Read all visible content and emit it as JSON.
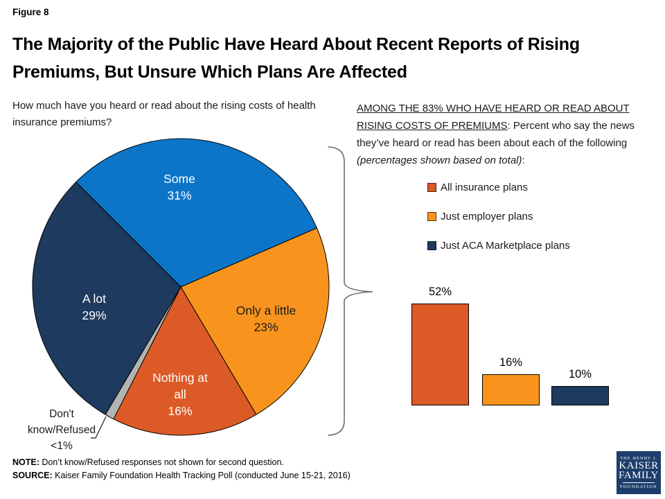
{
  "figure_label": "Figure 8",
  "title": "The Majority of the Public Have Heard About Recent Reports of Rising Premiums, But Unsure Which Plans Are Affected",
  "question_left": "How much have you heard or read about the rising costs of health insurance premiums?",
  "right_intro": {
    "underlined": "AMONG THE 83% WHO HAVE HEARD OR READ ABOUT RISING COSTS OF PREMIUMS",
    "after_underline": ": Percent who say the news they’ve heard or read has been about each of the following ",
    "italic": "(percentages shown based on total)",
    "tail": ":"
  },
  "legend": [
    {
      "label": "All insurance plans",
      "color": "#dc5a26"
    },
    {
      "label": "Just employer plans",
      "color": "#f8941d"
    },
    {
      "label": "Just ACA Marketplace plans",
      "color": "#1e3a5e"
    }
  ],
  "chart_data": [
    {
      "type": "pie",
      "question": "How much have you heard or read about the rising costs of health insurance premiums?",
      "start_angle_clockwise_from_12": -45,
      "slices": [
        {
          "label": "Some",
          "value": 31,
          "display": "31%",
          "color": "#0d75c8",
          "text_color": "#ffffff"
        },
        {
          "label": "Only a little",
          "value": 23,
          "display": "23%",
          "color": "#f8941d",
          "text_color": "#1a1a1a"
        },
        {
          "label": "Nothing at all",
          "value": 16,
          "display": "16%",
          "color": "#dc5a26",
          "text_color": "#ffffff"
        },
        {
          "label": "Don't know/Refused",
          "value": 1,
          "display": "<1%",
          "color": "#b3b3b3",
          "text_color": "#1a1a1a"
        },
        {
          "label": "A lot",
          "value": 29,
          "display": "29%",
          "color": "#1e3a5e",
          "text_color": "#ffffff"
        }
      ]
    },
    {
      "type": "bar",
      "categories": [
        "All insurance plans",
        "Just employer plans",
        "Just ACA Marketplace plans"
      ],
      "values": [
        52,
        16,
        10
      ],
      "labels": [
        "52%",
        "16%",
        "10%"
      ],
      "colors": [
        "#dc5a26",
        "#f8941d",
        "#1e3a5e"
      ],
      "ylim": [
        0,
        60
      ],
      "grid": false,
      "axes_shown": false,
      "legend_position": "above"
    }
  ],
  "footer": {
    "note_label": "NOTE:",
    "note": " Don’t know/Refused responses not shown for second question.",
    "source_label": "SOURCE:",
    "source": " Kaiser Family Foundation Health Tracking Poll (conducted June 15-21, 2016)"
  },
  "logo": {
    "line1": "THE HENRY J.",
    "line2": "KAISER",
    "line3": "FAMILY",
    "line4": "FOUNDATION"
  }
}
